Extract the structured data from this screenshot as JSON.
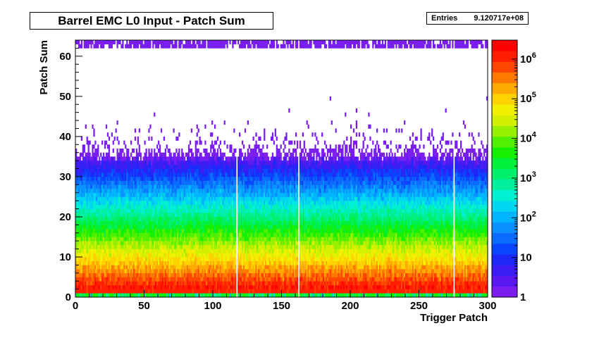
{
  "chart_data": {
    "type": "heatmap",
    "title": "Barrel EMC L0 Input - Patch Sum",
    "xlabel": "Trigger Patch",
    "ylabel": "Patch Sum",
    "xlim": [
      0,
      300
    ],
    "ylim": [
      0,
      64
    ],
    "x_ticks": [
      0,
      50,
      100,
      150,
      200,
      250,
      300
    ],
    "y_ticks": [
      0,
      10,
      20,
      30,
      40,
      50,
      60
    ],
    "z_scale": "log",
    "zlim": [
      1,
      3000000
    ],
    "z_tick_labels": [
      {
        "value": 1,
        "base": "1",
        "exp": ""
      },
      {
        "value": 10,
        "base": "10",
        "exp": ""
      },
      {
        "value": 100,
        "base": "10",
        "exp": "2"
      },
      {
        "value": 1000,
        "base": "10",
        "exp": "3"
      },
      {
        "value": 10000,
        "base": "10",
        "exp": "4"
      },
      {
        "value": 100000,
        "base": "10",
        "exp": "5"
      },
      {
        "value": 1000000,
        "base": "10",
        "exp": "6"
      }
    ],
    "palette": [
      "#7a1ef0",
      "#5a18f0",
      "#3c1ef5",
      "#1e28f8",
      "#0a46ff",
      "#0a6cff",
      "#0a90ff",
      "#00b4ff",
      "#00d6f0",
      "#00f0d2",
      "#00f0a0",
      "#00f06e",
      "#00f03c",
      "#14f000",
      "#50f000",
      "#96f000",
      "#d2f000",
      "#f0f000",
      "#ffd200",
      "#ffaa00",
      "#ff7800",
      "#ff4600",
      "#ff1e00",
      "#ff0000"
    ],
    "stats": {
      "label": "Entries",
      "value": "9.120717e+08"
    },
    "dead_patches": [
      117,
      162,
      275,
      300
    ],
    "description_counts": "Counts fall roughly exponentially with patch sum: ~1e6 at sum 1, ~1e5 at 3-4, ~1e4 at 6-8, ~1e3 at 14-16, ~1e2 at 22-24, ~10 at 30-32, sparse 1-count entries up to 60; overflow row at 62-63."
  }
}
